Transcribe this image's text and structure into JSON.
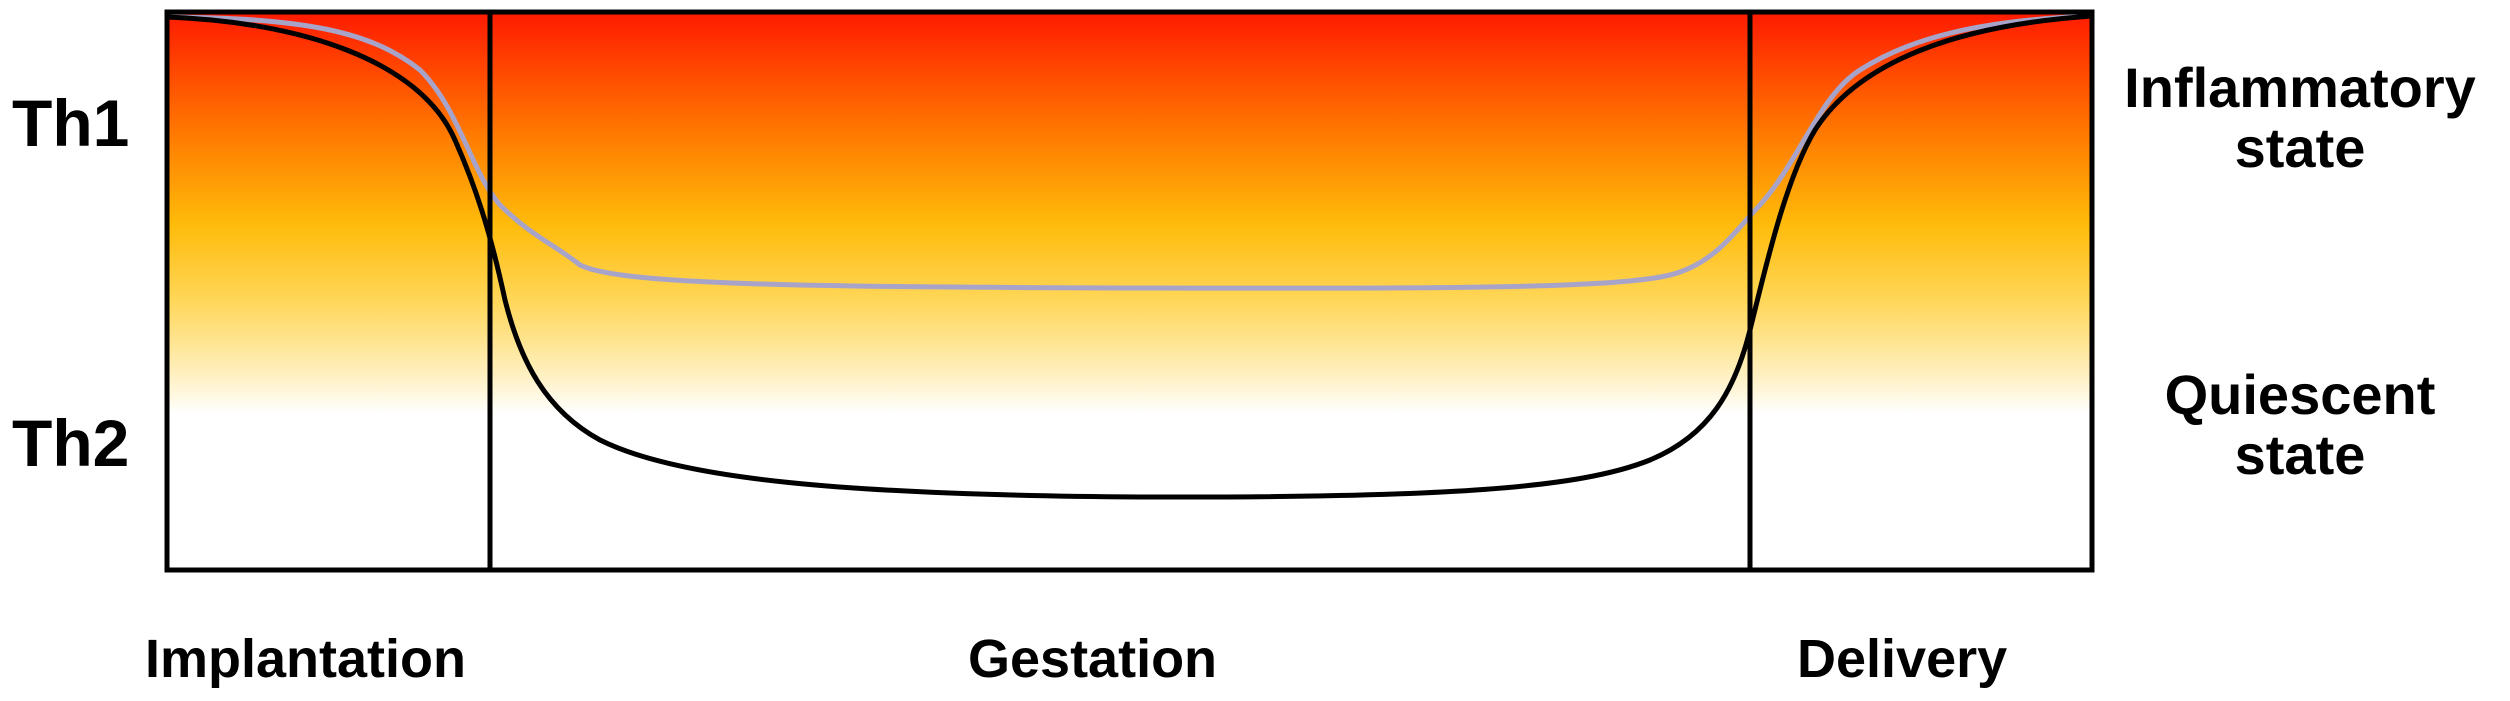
{
  "left_axis": {
    "top_label": "Th1",
    "bottom_label": "Th2"
  },
  "right_axis": {
    "top_label_line1": "Inflammatory",
    "top_label_line2": "state",
    "bottom_label_line1": "Quiescent",
    "bottom_label_line2": "state"
  },
  "phases": {
    "implantation": "Implantation",
    "gestation": "Gestation",
    "delivery": "Delivery"
  },
  "colors": {
    "gradient_top": "#ff1a00",
    "gradient_mid_orange": "#ff8c00",
    "gradient_mid_yellow": "#ffc61a",
    "gradient_bottom": "#ffffff",
    "curve_black": "#000000",
    "curve_lavender": "#a8a4c9",
    "frame": "#000000"
  }
}
